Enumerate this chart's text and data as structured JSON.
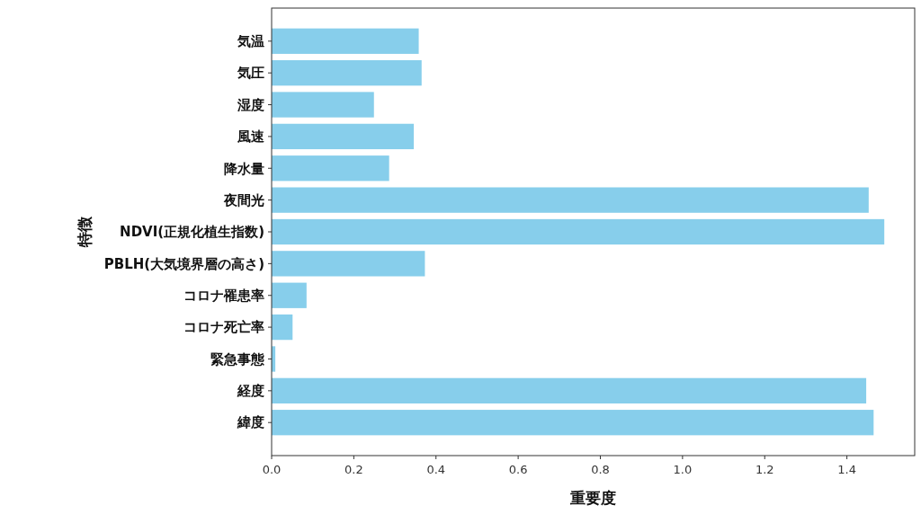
{
  "chart_data": {
    "type": "bar",
    "orientation": "horizontal",
    "xlabel": "重要度",
    "ylabel": "特徴",
    "categories": [
      "気温",
      "気圧",
      "湿度",
      "風速",
      "降水量",
      "夜間光",
      "NDVI(正規化植生指数)",
      "PBLH(大気境界層の高さ)",
      "コロナ罹患率",
      "コロナ死亡率",
      "緊急事態",
      "経度",
      "緯度"
    ],
    "values": [
      0.358,
      0.365,
      0.249,
      0.346,
      0.286,
      1.453,
      1.491,
      0.373,
      0.085,
      0.051,
      0.009,
      1.447,
      1.465
    ],
    "color": "#87ceeb",
    "xlim": [
      0,
      1.565
    ],
    "xticks": [
      {
        "value": 0,
        "label": "0.0"
      },
      0.2,
      0.4,
      0.6,
      0.8,
      {
        "value": 1,
        "label": "1.0"
      },
      1.2,
      1.4
    ]
  }
}
